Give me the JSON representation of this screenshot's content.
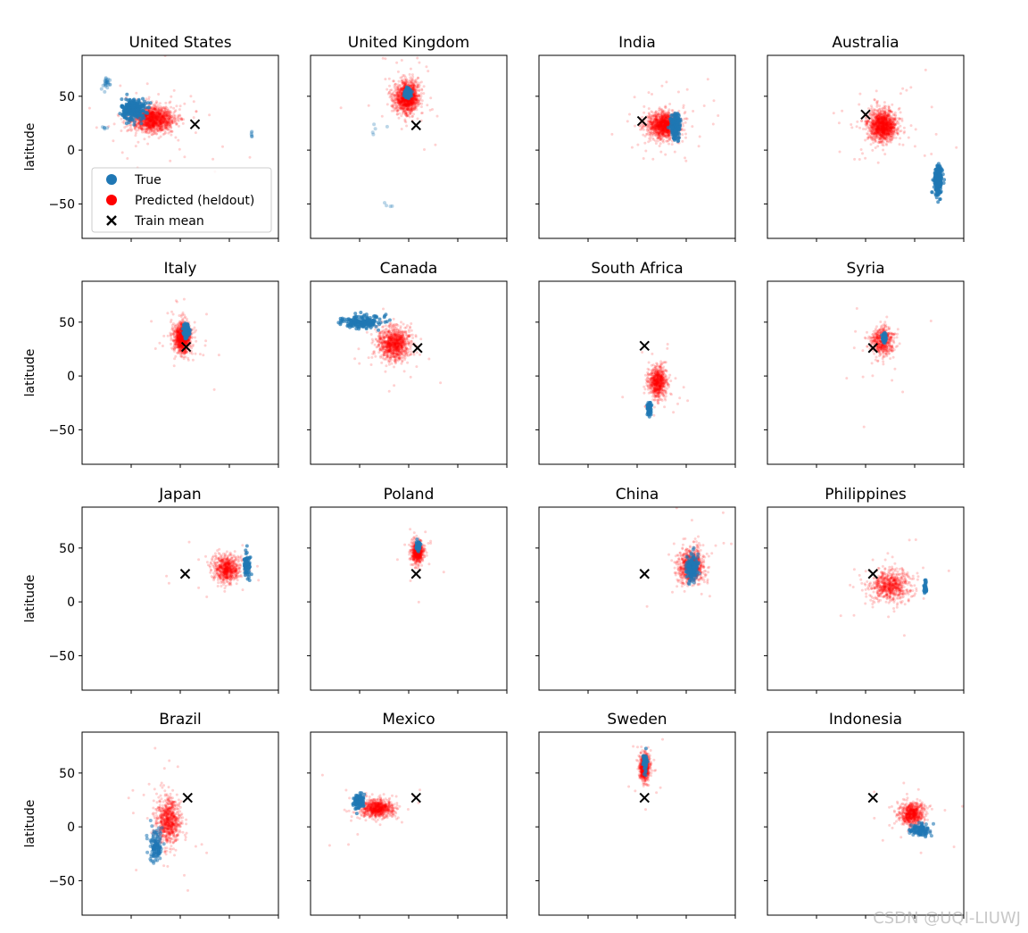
{
  "watermark": "CSDN @UQI-LIUWJ",
  "chart_data": {
    "type": "scatter",
    "layout": "4x4 grid of panels, shared x and y axes",
    "ylabel": "latitude",
    "ylim": [
      -82,
      88
    ],
    "xlim": [
      -200,
      200
    ],
    "y_ticks": [
      50,
      0,
      -50
    ],
    "x_ticks": [
      -100,
      0,
      100,
      200
    ],
    "x_tick_labels_visible": false,
    "legend": {
      "placement": "lower-left of first panel",
      "entries": [
        {
          "label": "True",
          "marker": "circle",
          "color": "#1f77b4"
        },
        {
          "label": "Predicted (heldout)",
          "marker": "circle",
          "color": "#ff0000"
        },
        {
          "label": "Train mean",
          "marker": "x",
          "color": "#000000"
        }
      ]
    },
    "train_mean": {
      "lon": 15,
      "lat": 26
    },
    "panels": [
      {
        "title": "United States",
        "true_clusters": [
          {
            "lon": -95,
            "lat": 38,
            "sx": 12,
            "sy": 5,
            "n": 260,
            "alpha": 0.7
          },
          {
            "lon": -150,
            "lat": 62,
            "sx": 6,
            "sy": 3,
            "n": 25,
            "alpha": 0.35
          },
          {
            "lon": -157,
            "lat": 20,
            "sx": 3,
            "sy": 1,
            "n": 5,
            "alpha": 0.35
          },
          {
            "lon": 145,
            "lat": 15,
            "sx": 2,
            "sy": 2,
            "n": 6,
            "alpha": 0.35
          }
        ],
        "pred_clusters": [
          {
            "lon": -55,
            "lat": 29,
            "sx": 22,
            "sy": 6,
            "n": 1400,
            "alpha": 0.18
          }
        ],
        "train_mean": {
          "lon": 30,
          "lat": 24
        }
      },
      {
        "title": "United Kingdom",
        "true_clusters": [
          {
            "lon": -2,
            "lat": 53,
            "sx": 3,
            "sy": 2,
            "n": 150,
            "alpha": 0.7
          },
          {
            "lon": -60,
            "lat": 20,
            "sx": 12,
            "sy": 4,
            "n": 5,
            "alpha": 0.3
          },
          {
            "lon": -40,
            "lat": -53,
            "sx": 5,
            "sy": 2,
            "n": 4,
            "alpha": 0.3
          }
        ],
        "pred_clusters": [
          {
            "lon": -3,
            "lat": 49,
            "sx": 12,
            "sy": 7,
            "n": 1300,
            "alpha": 0.18
          }
        ],
        "train_mean": {
          "lon": 15,
          "lat": 23
        }
      },
      {
        "title": "India",
        "true_clusters": [
          {
            "lon": 78,
            "lat": 22,
            "sx": 5,
            "sy": 6,
            "n": 200,
            "alpha": 0.7
          }
        ],
        "pred_clusters": [
          {
            "lon": 55,
            "lat": 23,
            "sx": 16,
            "sy": 6,
            "n": 1300,
            "alpha": 0.18
          }
        ],
        "train_mean": {
          "lon": 10,
          "lat": 27
        }
      },
      {
        "title": "Australia",
        "true_clusters": [
          {
            "lon": 148,
            "lat": -28,
            "sx": 4,
            "sy": 7,
            "n": 220,
            "alpha": 0.7
          }
        ],
        "pred_clusters": [
          {
            "lon": 35,
            "lat": 23,
            "sx": 14,
            "sy": 7,
            "n": 1300,
            "alpha": 0.18
          }
        ],
        "train_mean": {
          "lon": 0,
          "lat": 33
        }
      },
      {
        "title": "Italy",
        "true_clusters": [
          {
            "lon": 12,
            "lat": 42,
            "sx": 3,
            "sy": 3,
            "n": 120,
            "alpha": 0.7
          }
        ],
        "pred_clusters": [
          {
            "lon": 5,
            "lat": 35,
            "sx": 9,
            "sy": 7,
            "n": 1000,
            "alpha": 0.18
          }
        ],
        "train_mean": {
          "lon": 12,
          "lat": 27
        }
      },
      {
        "title": "Canada",
        "true_clusters": [
          {
            "lon": -95,
            "lat": 50,
            "sx": 20,
            "sy": 3,
            "n": 180,
            "alpha": 0.7
          }
        ],
        "pred_clusters": [
          {
            "lon": -30,
            "lat": 30,
            "sx": 16,
            "sy": 7,
            "n": 1000,
            "alpha": 0.18
          }
        ],
        "train_mean": {
          "lon": 18,
          "lat": 26
        }
      },
      {
        "title": "South Africa",
        "true_clusters": [
          {
            "lon": 25,
            "lat": -30,
            "sx": 2,
            "sy": 3,
            "n": 80,
            "alpha": 0.7
          }
        ],
        "pred_clusters": [
          {
            "lon": 42,
            "lat": -6,
            "sx": 9,
            "sy": 7,
            "n": 700,
            "alpha": 0.18
          }
        ],
        "train_mean": {
          "lon": 15,
          "lat": 28
        }
      },
      {
        "title": "Syria",
        "true_clusters": [
          {
            "lon": 38,
            "lat": 35,
            "sx": 2,
            "sy": 2,
            "n": 60,
            "alpha": 0.7
          }
        ],
        "pred_clusters": [
          {
            "lon": 35,
            "lat": 32,
            "sx": 12,
            "sy": 7,
            "n": 500,
            "alpha": 0.18
          }
        ],
        "train_mean": {
          "lon": 15,
          "lat": 26
        }
      },
      {
        "title": "Japan",
        "true_clusters": [
          {
            "lon": 136,
            "lat": 35,
            "sx": 4,
            "sy": 5,
            "n": 80,
            "alpha": 0.7
          }
        ],
        "pred_clusters": [
          {
            "lon": 95,
            "lat": 31,
            "sx": 14,
            "sy": 6,
            "n": 700,
            "alpha": 0.18
          }
        ],
        "train_mean": {
          "lon": 10,
          "lat": 26
        }
      },
      {
        "title": "Poland",
        "true_clusters": [
          {
            "lon": 19,
            "lat": 52,
            "sx": 2,
            "sy": 2,
            "n": 60,
            "alpha": 0.7
          }
        ],
        "pred_clusters": [
          {
            "lon": 18,
            "lat": 46,
            "sx": 6,
            "sy": 5,
            "n": 600,
            "alpha": 0.18
          }
        ],
        "train_mean": {
          "lon": 15,
          "lat": 26
        }
      },
      {
        "title": "China",
        "true_clusters": [
          {
            "lon": 112,
            "lat": 32,
            "sx": 6,
            "sy": 6,
            "n": 160,
            "alpha": 0.6
          }
        ],
        "pred_clusters": [
          {
            "lon": 110,
            "lat": 33,
            "sx": 13,
            "sy": 8,
            "n": 800,
            "alpha": 0.18
          }
        ],
        "train_mean": {
          "lon": 15,
          "lat": 26
        }
      },
      {
        "title": "Philippines",
        "true_clusters": [
          {
            "lon": 122,
            "lat": 14,
            "sx": 1.2,
            "sy": 3,
            "n": 40,
            "alpha": 0.7
          }
        ],
        "pred_clusters": [
          {
            "lon": 50,
            "lat": 15,
            "sx": 20,
            "sy": 7,
            "n": 700,
            "alpha": 0.18
          }
        ],
        "train_mean": {
          "lon": 15,
          "lat": 26
        }
      },
      {
        "title": "Brazil",
        "true_clusters": [
          {
            "lon": -50,
            "lat": -18,
            "sx": 6,
            "sy": 9,
            "n": 120,
            "alpha": 0.55
          }
        ],
        "pred_clusters": [
          {
            "lon": -25,
            "lat": 5,
            "sx": 13,
            "sy": 11,
            "n": 800,
            "alpha": 0.18
          }
        ],
        "train_mean": {
          "lon": 15,
          "lat": 27
        }
      },
      {
        "title": "Mexico",
        "true_clusters": [
          {
            "lon": -101,
            "lat": 23,
            "sx": 5,
            "sy": 4,
            "n": 100,
            "alpha": 0.7
          }
        ],
        "pred_clusters": [
          {
            "lon": -65,
            "lat": 17,
            "sx": 16,
            "sy": 4,
            "n": 800,
            "alpha": 0.18
          }
        ],
        "train_mean": {
          "lon": 15,
          "lat": 27
        }
      },
      {
        "title": "Sweden",
        "true_clusters": [
          {
            "lon": 16,
            "lat": 60,
            "sx": 2,
            "sy": 4,
            "n": 60,
            "alpha": 0.7
          }
        ],
        "pred_clusters": [
          {
            "lon": 15,
            "lat": 55,
            "sx": 5,
            "sy": 6,
            "n": 700,
            "alpha": 0.18
          }
        ],
        "train_mean": {
          "lon": 15,
          "lat": 27
        }
      },
      {
        "title": "Indonesia",
        "true_clusters": [
          {
            "lon": 110,
            "lat": -3,
            "sx": 10,
            "sy": 3,
            "n": 110,
            "alpha": 0.6
          }
        ],
        "pred_clusters": [
          {
            "lon": 95,
            "lat": 12,
            "sx": 12,
            "sy": 5,
            "n": 700,
            "alpha": 0.18
          }
        ],
        "train_mean": {
          "lon": 15,
          "lat": 27
        }
      }
    ]
  }
}
